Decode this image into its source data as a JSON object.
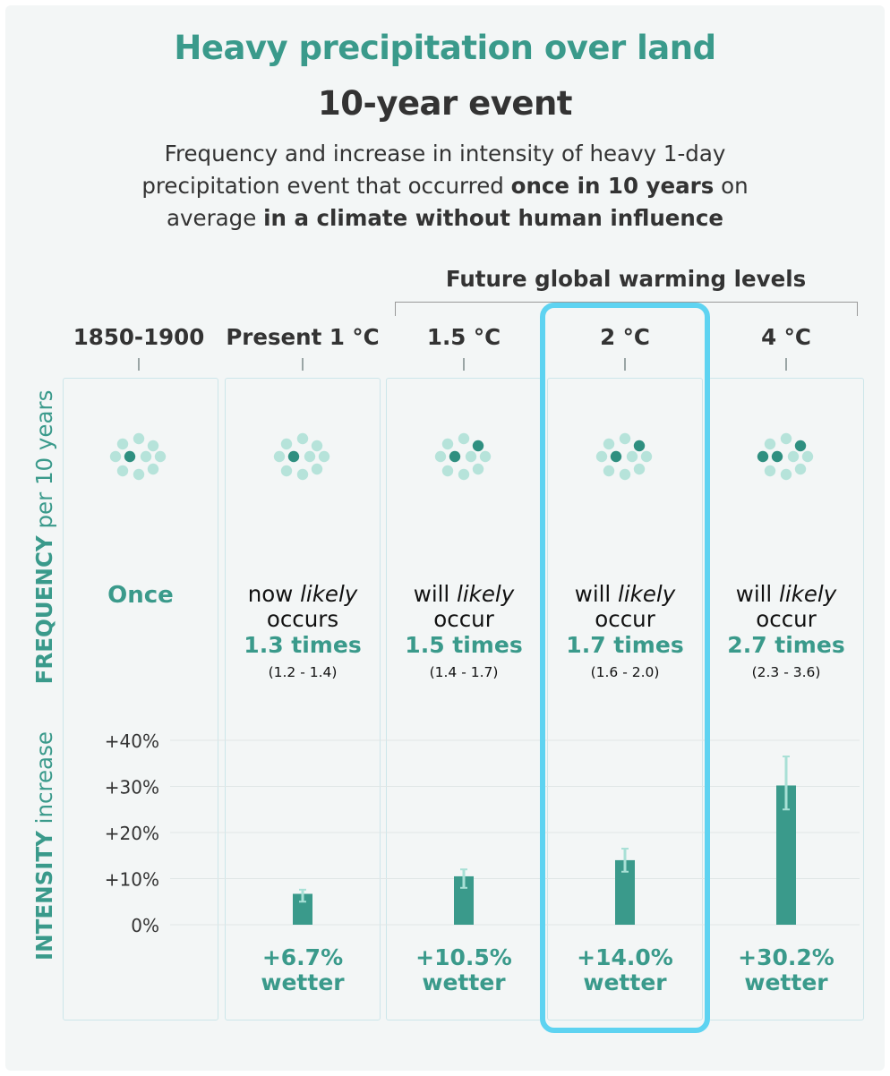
{
  "title": "Heavy precipitation over land",
  "subtitle": "10-year event",
  "description": {
    "part1": "Frequency and increase in intensity of heavy 1-day precipitation event that occurred ",
    "bold1": "once in 10 years",
    "part2": " on average ",
    "bold2": "in a climate without human influence"
  },
  "future_label": "Future global warming levels",
  "axes": {
    "frequency_main": "FREQUENCY",
    "frequency_sub": " per 10 years",
    "intensity_main": "INTENSITY",
    "intensity_sub": " increase"
  },
  "colors": {
    "accent": "#3a9a8b",
    "bar": "#3a9a8b",
    "error_bar": "#a8e0d6",
    "dot_light": "#b6e3da",
    "dot_dark": "#2f8f80",
    "highlight": "#5ed3f1"
  },
  "columns": [
    {
      "header": "1850-1900",
      "once": "Once",
      "dots_dark": 1
    },
    {
      "header": "Present 1 °C",
      "freq_prefix": "now ",
      "freq_italic": "likely",
      "freq_line2": "occurs",
      "freq_value": "1.3 times",
      "freq_range": "(1.2 - 1.4)",
      "pct": "+6.7%",
      "wetter": "wetter",
      "dots_dark": 1
    },
    {
      "header": "1.5 °C",
      "freq_prefix": "will ",
      "freq_italic": "likely",
      "freq_line2": "occur",
      "freq_value": "1.5 times",
      "freq_range": "(1.4 - 1.7)",
      "pct": "+10.5%",
      "wetter": "wetter",
      "dots_dark": 2
    },
    {
      "header": "2 °C",
      "freq_prefix": "will ",
      "freq_italic": "likely",
      "freq_line2": "occur",
      "freq_value": "1.7 times",
      "freq_range": "(1.6 - 2.0)",
      "pct": "+14.0%",
      "wetter": "wetter",
      "dots_dark": 2
    },
    {
      "header": "4 °C",
      "freq_prefix": "will ",
      "freq_italic": "likely",
      "freq_line2": "occur",
      "freq_value": "2.7 times",
      "freq_range": "(2.3 - 3.6)",
      "pct": "+30.2%",
      "wetter": "wetter",
      "dots_dark": 3
    }
  ],
  "chart_data": {
    "type": "bar",
    "title": "",
    "ylabel": "INTENSITY increase",
    "ylim": [
      0,
      40
    ],
    "yticks": [
      0,
      10,
      20,
      30,
      40
    ],
    "ytick_labels": [
      "0%",
      "+10%",
      "+20%",
      "+30%",
      "+40%"
    ],
    "grid": true,
    "categories": [
      "1850-1900",
      "Present 1 °C",
      "1.5 °C",
      "2 °C",
      "4 °C"
    ],
    "series": [
      {
        "values": [
          null,
          6.7,
          10.5,
          14.0,
          30.2
        ],
        "error_low": [
          null,
          5.0,
          8.0,
          11.5,
          25.0
        ],
        "error_high": [
          null,
          7.6,
          12.0,
          16.5,
          36.5
        ]
      }
    ],
    "highlighted_category": "2 °C"
  }
}
